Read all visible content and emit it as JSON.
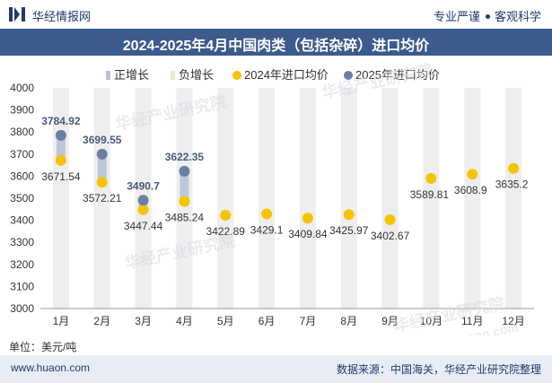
{
  "header": {
    "brand": "华经情报网",
    "motto_left": "专业严谨",
    "motto_right": "客观科学"
  },
  "title": "2024-2025年4月中国肉类（包括杂碎）进口均价",
  "legend": {
    "positive": "正增长",
    "negative": "负增长",
    "s2024": "2024年进口均价",
    "s2025": "2025年进口均价"
  },
  "unit": "单位：美元/吨",
  "footer": {
    "site": "www.huaon.com",
    "source": "数据来源：中国海关，华经产业研究院整理"
  },
  "watermarks": [
    "华经产业研究院",
    "华经产业研究院",
    "华经产业研究院",
    "华经产业研究院",
    "www.huaon.com"
  ],
  "colors": {
    "s2024": "#f5c400",
    "s2025": "#6b7fa3",
    "positive_bar": "#b8c2d6",
    "header_bg": "#3d5a8c",
    "column_bg": "#eeeeee"
  },
  "chart_data": {
    "type": "line",
    "categories": [
      "1月",
      "2月",
      "3月",
      "4月",
      "5月",
      "6月",
      "7月",
      "8月",
      "9月",
      "10月",
      "11月",
      "12月"
    ],
    "series": [
      {
        "name": "2024年进口均价",
        "values": [
          3671.54,
          3572.21,
          3447.44,
          3485.24,
          3422.89,
          3429.1,
          3409.84,
          3425.97,
          3402.67,
          3589.81,
          3608.9,
          3635.2
        ],
        "labels": [
          "3671.54",
          "3572.21",
          "3447.44",
          "3485.24",
          "3422.89",
          "3429.1",
          "3409.84",
          "3425.97",
          "3402.67",
          "3589.81",
          "3608.9",
          "3635.2"
        ]
      },
      {
        "name": "2025年进口均价",
        "values": [
          3784.92,
          3699.55,
          3490.7,
          3622.35,
          null,
          null,
          null,
          null,
          null,
          null,
          null,
          null
        ],
        "labels": [
          "3784.92",
          "3699.55",
          "3490.7",
          "3622.35"
        ]
      }
    ],
    "ylim": [
      3000,
      4000
    ],
    "yticks": [
      "4000",
      "3900",
      "3800",
      "3700",
      "3600",
      "3500",
      "3400",
      "3300",
      "3200",
      "3100",
      "3000"
    ],
    "legend_position": "top"
  }
}
